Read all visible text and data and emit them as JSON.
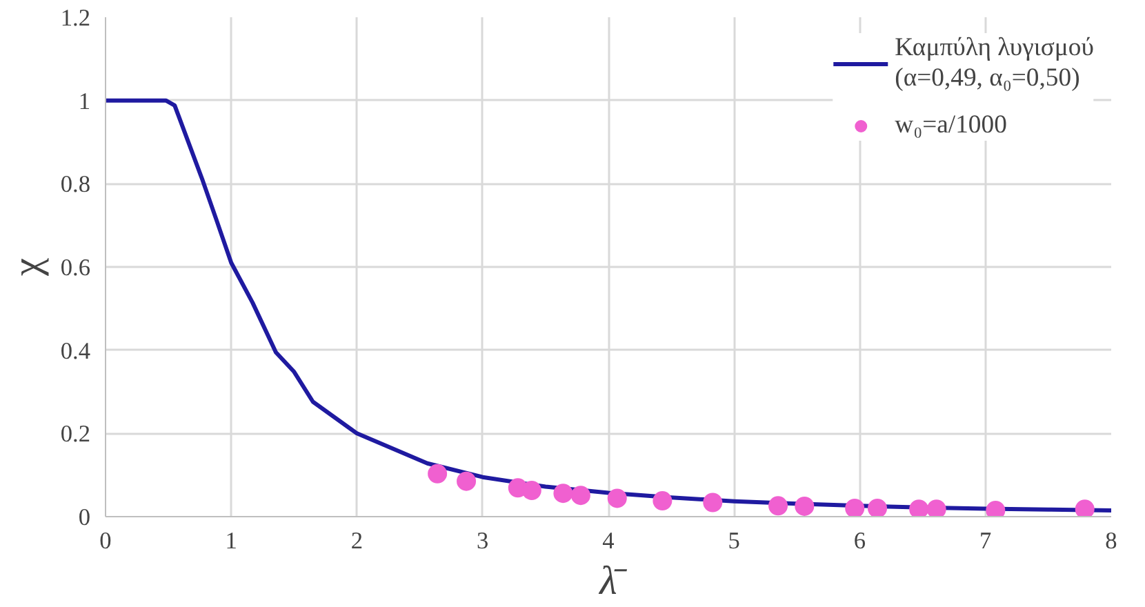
{
  "chart_data": {
    "type": "line",
    "xlabel": "λ̄",
    "ylabel": "χ",
    "xlim": [
      0,
      8
    ],
    "ylim": [
      0,
      1.2
    ],
    "xticks": [
      0,
      1,
      2,
      3,
      4,
      5,
      6,
      7,
      8
    ],
    "yticks": [
      0,
      0.2,
      0.4,
      0.6,
      0.8,
      1,
      1.2
    ],
    "grid": true,
    "legend": "top right",
    "series": [
      {
        "name": "Καμπύλη λυγισμού\n(α=0,49, α₀=0,50)",
        "color": "#1f1aa0",
        "marker": "none",
        "x": [
          0,
          0.2,
          0.4,
          0.48,
          0.55,
          0.77,
          0.88,
          1.0,
          1.17,
          1.355,
          1.5,
          1.65,
          2.0,
          2.56,
          3.0,
          3.5,
          4.0,
          4.5,
          5.0,
          5.5,
          6.0,
          6.5,
          7.0,
          7.5,
          8.0
        ],
        "values": [
          1.0,
          1.0,
          1.0,
          1.0,
          0.988,
          0.81,
          0.715,
          0.61,
          0.514,
          0.395,
          0.348,
          0.276,
          0.2,
          0.128,
          0.095,
          0.072,
          0.057,
          0.046,
          0.037,
          0.031,
          0.026,
          0.022,
          0.019,
          0.017,
          0.015
        ]
      },
      {
        "name": "w₀=a/1000",
        "color": "#f060d0",
        "type": "scatter",
        "marker": "circle",
        "x": [
          2.64,
          2.87,
          3.28,
          3.39,
          3.64,
          3.78,
          4.07,
          4.43,
          4.83,
          5.35,
          5.56,
          5.96,
          6.14,
          6.47,
          6.61,
          7.08,
          7.79
        ],
        "values": [
          0.103,
          0.085,
          0.069,
          0.063,
          0.056,
          0.051,
          0.044,
          0.038,
          0.034,
          0.026,
          0.025,
          0.02,
          0.02,
          0.018,
          0.018,
          0.015,
          0.018
        ]
      }
    ]
  }
}
